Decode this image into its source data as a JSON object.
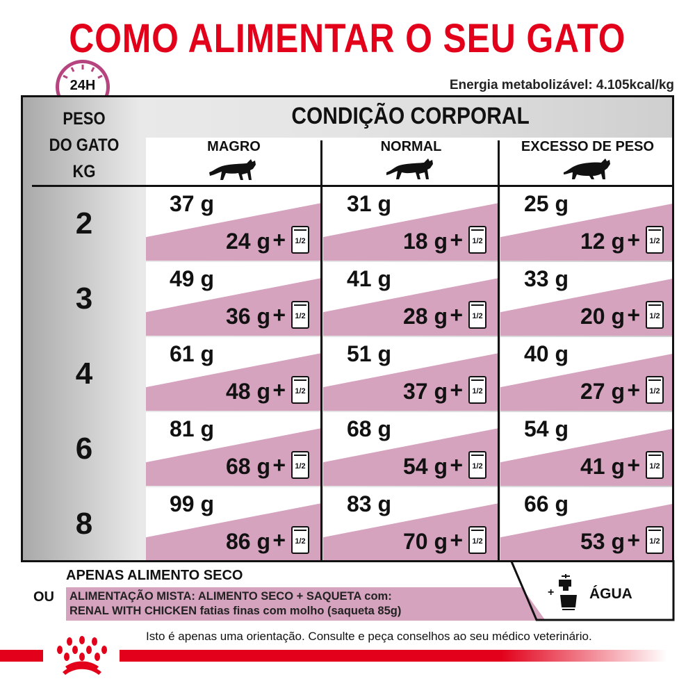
{
  "title": "COMO ALIMENTAR O SEU GATO",
  "clock_label": "24H",
  "energy": "Energia metabolizável: 4.105kcal/kg",
  "table": {
    "header": "CONDIÇÃO CORPORAL",
    "weight_header": [
      "PESO",
      "DO GATO",
      "KG"
    ],
    "columns": [
      "MAGRO",
      "NORMAL",
      "EXCESSO DE PESO"
    ],
    "pouch_label": "1/2",
    "plus": "+",
    "rows": [
      {
        "kg": "2",
        "cells": [
          {
            "dry": "37 g",
            "mixed": "24 g"
          },
          {
            "dry": "31 g",
            "mixed": "18 g"
          },
          {
            "dry": "25 g",
            "mixed": "12 g"
          }
        ]
      },
      {
        "kg": "3",
        "cells": [
          {
            "dry": "49 g",
            "mixed": "36 g"
          },
          {
            "dry": "41 g",
            "mixed": "28 g"
          },
          {
            "dry": "33 g",
            "mixed": "20 g"
          }
        ]
      },
      {
        "kg": "4",
        "cells": [
          {
            "dry": "61 g",
            "mixed": "48 g"
          },
          {
            "dry": "51 g",
            "mixed": "37 g"
          },
          {
            "dry": "40 g",
            "mixed": "27 g"
          }
        ]
      },
      {
        "kg": "6",
        "cells": [
          {
            "dry": "81 g",
            "mixed": "68 g"
          },
          {
            "dry": "68 g",
            "mixed": "54 g"
          },
          {
            "dry": "54 g",
            "mixed": "41 g"
          }
        ]
      },
      {
        "kg": "8",
        "cells": [
          {
            "dry": "99 g",
            "mixed": "86 g"
          },
          {
            "dry": "83 g",
            "mixed": "70 g"
          },
          {
            "dry": "66 g",
            "mixed": "53 g"
          }
        ]
      }
    ]
  },
  "legend": {
    "dry_only": "APENAS ALIMENTO SECO",
    "or": "OU",
    "mixed_line1": "ALIMENTAÇÃO MISTA: ALIMENTO SECO + SAQUETA com:",
    "mixed_line2": "RENAL WITH CHICKEN fatias finas com molho (saqueta 85g)",
    "water_plus": "+",
    "water": "ÁGUA"
  },
  "disclaimer": "Isto é apenas uma orientação. Consulte e peça conselhos ao seu médico veterinário.",
  "colors": {
    "brand_red": "#e2001a",
    "mixed_pink": "#d6a3bf",
    "clock_purple": "#b5447f"
  },
  "icons": [
    "clock-icon",
    "cat-icon",
    "pouch-icon",
    "water-tap-icon",
    "royal-canin-crown-logo"
  ]
}
